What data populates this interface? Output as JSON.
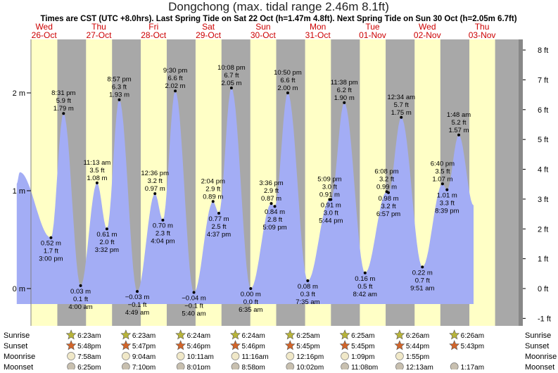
{
  "chart_data": {
    "type": "area",
    "title": "Dongchong (max. tidal range 2.46m 8.1ft)",
    "subtitle": "Times are CST (UTC +8.0hrs). Last Spring Tide on Sat 22 Oct (h=1.47m 4.8ft). Next Spring Tide on Sun 30 Oct (h=2.05m 6.7ft)",
    "days": [
      {
        "name": "Wed",
        "date": "26-Oct"
      },
      {
        "name": "Thu",
        "date": "27-Oct"
      },
      {
        "name": "Fri",
        "date": "28-Oct"
      },
      {
        "name": "Sat",
        "date": "29-Oct"
      },
      {
        "name": "Sun",
        "date": "30-Oct"
      },
      {
        "name": "Mon",
        "date": "31-Oct"
      },
      {
        "name": "Tue",
        "date": "01-Nov"
      },
      {
        "name": "Wed",
        "date": "02-Nov"
      },
      {
        "name": "Thu",
        "date": "03-Nov"
      }
    ],
    "y_left": {
      "unit": "m",
      "ylim": [
        -0.19,
        2.58
      ],
      "ticks": [
        {
          "v": 0,
          "label": "0 m"
        },
        {
          "v": 1,
          "label": "1 m"
        },
        {
          "v": 2,
          "label": "2 m"
        }
      ]
    },
    "y_right": {
      "unit": "ft",
      "ticks": [
        "-1 ft",
        "0 ft",
        "1 ft",
        "2 ft",
        "3 ft",
        "4 ft",
        "5 ft",
        "6 ft",
        "7 ft",
        "8 ft"
      ]
    },
    "daylight": [
      {
        "sunrise": 0.26,
        "sunset": 0.7417
      },
      {
        "sunrise": 1.266,
        "sunset": 1.741
      },
      {
        "sunrise": 2.266,
        "sunset": 2.7403
      },
      {
        "sunrise": 3.2667,
        "sunset": 3.7403
      },
      {
        "sunrise": 4.2667,
        "sunset": 4.7396
      },
      {
        "sunrise": 5.2674,
        "sunset": 5.7396
      },
      {
        "sunrise": 6.2674,
        "sunset": 6.7389
      },
      {
        "sunrise": 7.2681,
        "sunset": 7.7382
      },
      {
        "sunrise": 8.2681,
        "sunset": 8.7382
      }
    ],
    "tides": [
      {
        "t": 0.625,
        "m": 0.52,
        "type": "low",
        "lines": [
          "0.52 m",
          "1.7 ft",
          "3:00 pm"
        ]
      },
      {
        "t": 0.855,
        "m": 1.79,
        "type": "high",
        "lines": [
          "8:31 pm",
          "5.9 ft",
          "1.79 m"
        ]
      },
      {
        "t": 1.167,
        "m": 0.03,
        "type": "low",
        "lines": [
          "0.03 m",
          "0.1 ft",
          "4:00 am"
        ]
      },
      {
        "t": 1.467,
        "m": 1.08,
        "type": "high",
        "lines": [
          "11:13 am",
          "3.5 ft",
          "1.08 m"
        ]
      },
      {
        "t": 1.647,
        "m": 0.61,
        "type": "low",
        "lines": [
          "0.61 m",
          "2.0 ft",
          "3:32 pm"
        ]
      },
      {
        "t": 1.873,
        "m": 1.93,
        "type": "high",
        "lines": [
          "8:57 pm",
          "6.3 ft",
          "1.93 m"
        ]
      },
      {
        "t": 2.201,
        "m": -0.03,
        "type": "low",
        "lines": [
          "−0.03 m",
          "−0.1 ft",
          "4:49 am"
        ]
      },
      {
        "t": 2.525,
        "m": 0.97,
        "type": "high",
        "lines": [
          "12:36 pm",
          "3.2 ft",
          "0.97 m"
        ]
      },
      {
        "t": 2.669,
        "m": 0.7,
        "type": "low",
        "lines": [
          "0.70 m",
          "2.3 ft",
          "4:04 pm"
        ]
      },
      {
        "t": 2.896,
        "m": 2.02,
        "type": "high",
        "lines": [
          "9:30 pm",
          "6.6 ft",
          "2.02 m"
        ]
      },
      {
        "t": 3.236,
        "m": -0.04,
        "type": "low",
        "lines": [
          "−0.04 m",
          "−0.1 ft",
          "5:40 am"
        ]
      },
      {
        "t": 3.586,
        "m": 0.89,
        "type": "high",
        "lines": [
          "2:04 pm",
          "2.9 ft",
          "0.89 m"
        ]
      },
      {
        "t": 3.692,
        "m": 0.77,
        "type": "low",
        "lines": [
          "0.77 m",
          "2.5 ft",
          "4:37 pm"
        ]
      },
      {
        "t": 3.922,
        "m": 2.05,
        "type": "high",
        "lines": [
          "10:08 pm",
          "6.7 ft",
          "2.05 m"
        ]
      },
      {
        "t": 4.274,
        "m": 0.0,
        "type": "low",
        "lines": [
          "0.00 m",
          "0.0 ft",
          "6:35 am"
        ]
      },
      {
        "t": 4.65,
        "m": 0.87,
        "type": "high",
        "lines": [
          "3:36 pm",
          "2.9 ft",
          "0.87 m"
        ]
      },
      {
        "t": 4.714,
        "m": 0.84,
        "type": "low",
        "lines": [
          "0.84 m",
          "2.8 ft",
          "5:09 pm"
        ]
      },
      {
        "t": 4.951,
        "m": 2.0,
        "type": "high",
        "lines": [
          "10:50 pm",
          "6.6 ft",
          "2.00 m"
        ]
      },
      {
        "t": 5.316,
        "m": 0.08,
        "type": "low",
        "lines": [
          "0.08 m",
          "0.3 ft",
          "7:35 am"
        ]
      },
      {
        "t": 5.715,
        "m": 0.91,
        "type": "high",
        "lines": [
          "5:09 pm",
          "3.0 ft",
          "0.91 m"
        ]
      },
      {
        "t": 5.739,
        "m": 0.91,
        "type": "low",
        "lines": [
          "0.91 m",
          "3.0 ft",
          "5:44 pm"
        ]
      },
      {
        "t": 5.983,
        "m": 1.9,
        "type": "high",
        "lines": [
          "11:38 pm",
          "6.2 ft",
          "1.90 m"
        ]
      },
      {
        "t": 6.363,
        "m": 0.16,
        "type": "low",
        "lines": [
          "0.16 m",
          "0.5 ft",
          "8:42 am"
        ]
      },
      {
        "t": 6.758,
        "m": 0.99,
        "type": "high",
        "lines": [
          "6:08 pm",
          "3.2 ft",
          "0.99 m"
        ]
      },
      {
        "t": 6.79,
        "m": 0.98,
        "type": "low",
        "lines": [
          "0.98 m",
          "3.2 ft",
          "6:57 pm"
        ]
      },
      {
        "t": 7.024,
        "m": 1.75,
        "type": "high",
        "lines": [
          "12:34 am",
          "5.7 ft",
          "1.75 m"
        ]
      },
      {
        "t": 7.41,
        "m": 0.22,
        "type": "low",
        "lines": [
          "0.22 m",
          "0.7 ft",
          "9:51 am"
        ]
      },
      {
        "t": 7.778,
        "m": 1.07,
        "type": "high",
        "lines": [
          "6:40 pm",
          "3.5 ft",
          "1.07 m"
        ]
      },
      {
        "t": 7.86,
        "m": 1.01,
        "type": "low",
        "lines": [
          "1.01 m",
          "3.3 ft",
          "8:39 pm"
        ]
      },
      {
        "t": 8.075,
        "m": 1.57,
        "type": "high",
        "lines": [
          "1:48 am",
          "5.2 ft",
          "1.57 m"
        ]
      }
    ],
    "curve_ends": {
      "start": {
        "t": 0.0,
        "m": 1.07
      },
      "peak": {
        "t": 0.055,
        "m": 1.19
      },
      "end": {
        "t": 8.345,
        "m": 0.85
      }
    },
    "rows": [
      {
        "label": "Sunrise",
        "kind": "sun",
        "color": "#b8b43a",
        "items": [
          {
            "d": 1,
            "time": "6:23am"
          },
          {
            "d": 2,
            "time": "6:23am"
          },
          {
            "d": 3,
            "time": "6:24am"
          },
          {
            "d": 4,
            "time": "6:24am"
          },
          {
            "d": 5,
            "time": "6:25am"
          },
          {
            "d": 6,
            "time": "6:25am"
          },
          {
            "d": 7,
            "time": "6:26am"
          },
          {
            "d": 8,
            "time": "6:26am"
          }
        ]
      },
      {
        "label": "Sunset",
        "kind": "sun",
        "color": "#d2652a",
        "items": [
          {
            "d": 1,
            "time": "5:48pm"
          },
          {
            "d": 2,
            "time": "5:47pm"
          },
          {
            "d": 3,
            "time": "5:46pm"
          },
          {
            "d": 4,
            "time": "5:46pm"
          },
          {
            "d": 5,
            "time": "5:45pm"
          },
          {
            "d": 6,
            "time": "5:45pm"
          },
          {
            "d": 7,
            "time": "5:44pm"
          },
          {
            "d": 8,
            "time": "5:43pm"
          }
        ]
      },
      {
        "label": "Moonrise",
        "kind": "moon",
        "color": "#f0e8c8",
        "items": [
          {
            "d": 1,
            "time": "7:58am"
          },
          {
            "d": 2,
            "time": "9:04am"
          },
          {
            "d": 3,
            "time": "10:11am"
          },
          {
            "d": 4,
            "time": "11:16am"
          },
          {
            "d": 5,
            "time": "12:16pm"
          },
          {
            "d": 6,
            "time": "1:09pm"
          },
          {
            "d": 7,
            "time": "1:55pm"
          }
        ]
      },
      {
        "label": "Moonset",
        "kind": "moon",
        "color": "#c8c0b0",
        "items": [
          {
            "d": 1,
            "time": "6:25pm"
          },
          {
            "d": 2,
            "time": "7:10pm"
          },
          {
            "d": 3,
            "time": "8:01pm"
          },
          {
            "d": 4,
            "time": "8:58pm"
          },
          {
            "d": 5,
            "time": "10:02pm"
          },
          {
            "d": 6,
            "time": "11:08pm"
          },
          {
            "d": 7,
            "time": "12:13am"
          },
          {
            "d": 8,
            "time": "1:17am"
          }
        ]
      }
    ],
    "colors": {
      "day": "#ffffc6",
      "night": "#a8a8a8",
      "water": "#a3adf5",
      "axis": "#808080",
      "date": "#cc0000"
    }
  }
}
